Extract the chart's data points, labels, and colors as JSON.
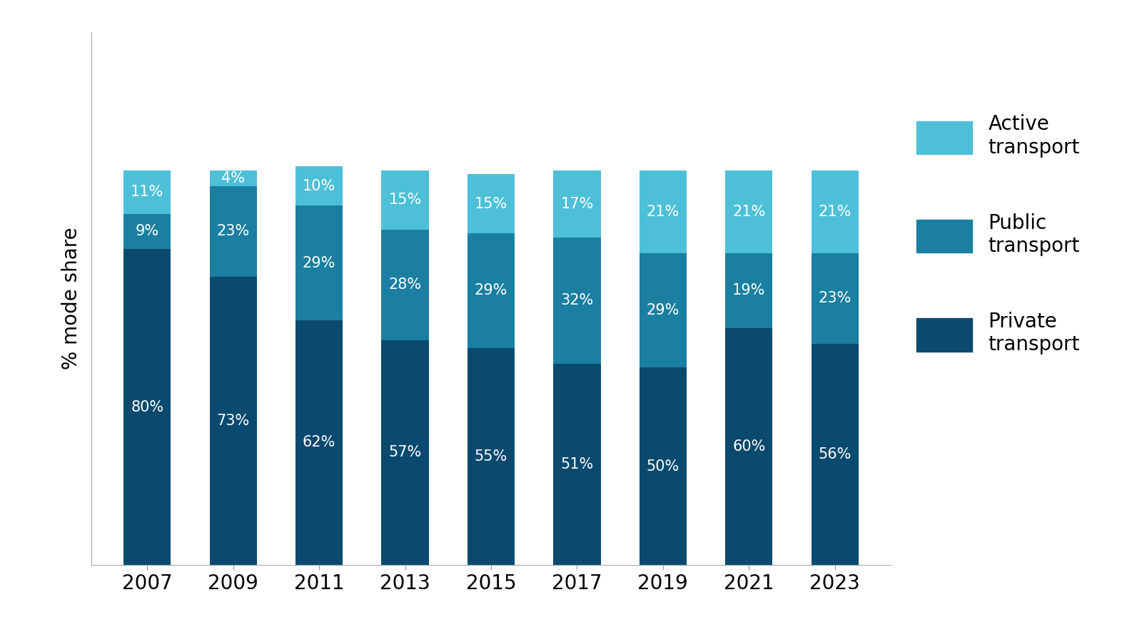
{
  "years": [
    "2007",
    "2009",
    "2011",
    "2013",
    "2015",
    "2017",
    "2019",
    "2021",
    "2023"
  ],
  "private": [
    80,
    73,
    62,
    57,
    55,
    51,
    50,
    60,
    56
  ],
  "public": [
    9,
    23,
    29,
    28,
    29,
    32,
    29,
    19,
    23
  ],
  "active": [
    11,
    4,
    10,
    15,
    15,
    17,
    21,
    21,
    21
  ],
  "private_color": "#0a4a6e",
  "public_color": "#1a7fa0",
  "active_color": "#4dc0d8",
  "background_color": "#ffffff",
  "ylabel": "% mode share",
  "label_fontsize": 15,
  "tick_fontsize": 20,
  "legend_fontsize": 20,
  "bar_width": 0.55,
  "ylim": 135,
  "legend_labels": [
    "Active\ntransport",
    "Public\ntransport",
    "Private\ntransport"
  ]
}
